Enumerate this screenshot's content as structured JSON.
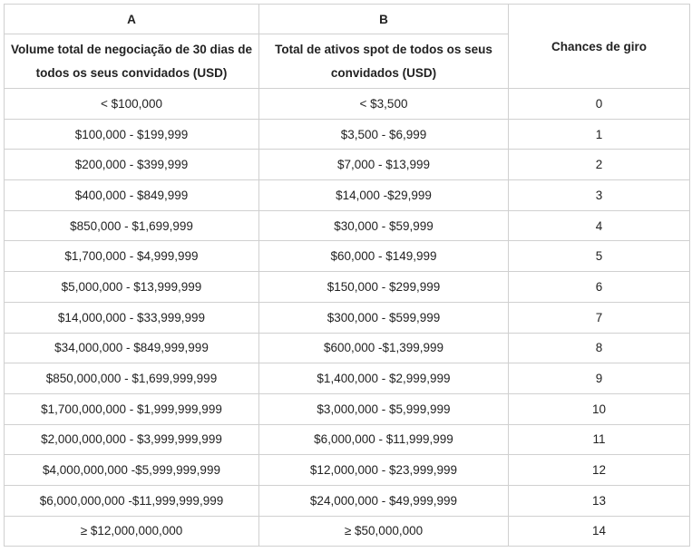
{
  "header": {
    "col_a_letter": "A",
    "col_b_letter": "B",
    "col_a_title": "Volume total de negociação de 30 dias de todos os seus convidados (USD)",
    "col_b_title": "Total de ativos spot de todos os seus convidados (USD)",
    "col_c_title": "Chances de giro"
  },
  "rows": [
    {
      "a": "< $100,000",
      "b": "< $3,500",
      "c": "0"
    },
    {
      "a": "$100,000 - $199,999",
      "b": "$3,500 - $6,999",
      "c": "1"
    },
    {
      "a": "$200,000 - $399,999",
      "b": "$7,000 - $13,999",
      "c": "2"
    },
    {
      "a": "$400,000 - $849,999",
      "b": "$14,000 -$29,999",
      "c": "3"
    },
    {
      "a": "$850,000 - $1,699,999",
      "b": "$30,000 - $59,999",
      "c": "4"
    },
    {
      "a": "$1,700,000 - $4,999,999",
      "b": "$60,000 - $149,999",
      "c": "5"
    },
    {
      "a": "$5,000,000 - $13,999,999",
      "b": "$150,000 - $299,999",
      "c": "6"
    },
    {
      "a": "$14,000,000 - $33,999,999",
      "b": "$300,000 - $599,999",
      "c": "7"
    },
    {
      "a": "$34,000,000 - $849,999,999",
      "b": "$600,000 -$1,399,999",
      "c": "8"
    },
    {
      "a": "$850,000,000 - $1,699,999,999",
      "b": "$1,400,000 - $2,999,999",
      "c": "9"
    },
    {
      "a": "$1,700,000,000 - $1,999,999,999",
      "b": "$3,000,000 - $5,999,999",
      "c": "10"
    },
    {
      "a": "$2,000,000,000 - $3,999,999,999",
      "b": "$6,000,000 - $11,999,999",
      "c": "11"
    },
    {
      "a": "$4,000,000,000 -$5,999,999,999",
      "b": "$12,000,000 - $23,999,999",
      "c": "12"
    },
    {
      "a": "$6,000,000,000 -$11,999,999,999",
      "b": "$24,000,000 - $49,999,999",
      "c": "13"
    },
    {
      "a": "≥ $12,000,000,000",
      "b": "≥ $50,000,000",
      "c": "14"
    }
  ]
}
